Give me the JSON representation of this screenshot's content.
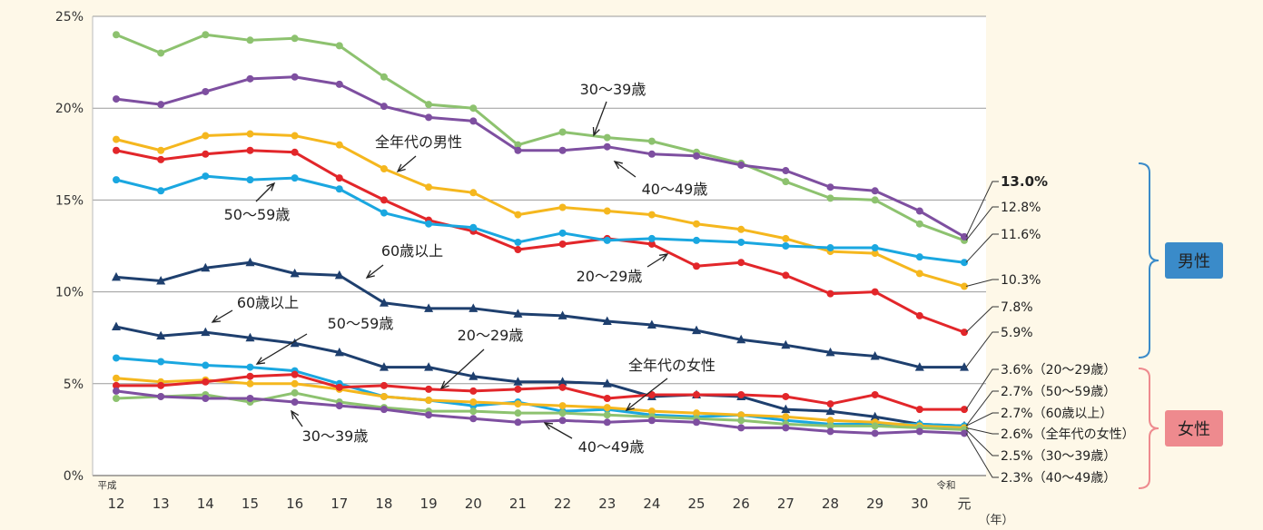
{
  "chart_data": {
    "type": "line",
    "ylim": [
      0,
      25
    ],
    "y_ticks": [
      "0%",
      "5%",
      "10%",
      "15%",
      "20%",
      "25%"
    ],
    "y_tick_values": [
      0,
      5,
      10,
      15,
      20,
      25
    ],
    "x_ticks": [
      "12",
      "13",
      "14",
      "15",
      "16",
      "17",
      "18",
      "19",
      "20",
      "21",
      "22",
      "23",
      "24",
      "25",
      "26",
      "27",
      "28",
      "29",
      "30",
      "元"
    ],
    "x_era_labels": [
      {
        "label": "平成",
        "index": 0
      },
      {
        "label": "令和",
        "index": 19
      }
    ],
    "x_unit": "（年）",
    "grid": "horizontal",
    "groups": {
      "male": "男性",
      "female": "女性"
    },
    "series": [
      {
        "key": "m_30",
        "group": "male",
        "color": "#8DC26F",
        "marker": "circle",
        "values": [
          24.0,
          23.0,
          24.0,
          23.7,
          23.8,
          23.4,
          21.7,
          20.2,
          20.0,
          18.0,
          18.7,
          18.4,
          18.2,
          17.6,
          17.0,
          16.0,
          15.1,
          15.0,
          13.7,
          12.8
        ]
      },
      {
        "key": "m_40",
        "group": "male",
        "color": "#7E4FA0",
        "marker": "circle",
        "values": [
          20.5,
          20.2,
          20.9,
          21.6,
          21.7,
          21.3,
          20.1,
          19.5,
          19.3,
          17.7,
          17.7,
          17.9,
          17.5,
          17.4,
          16.9,
          16.6,
          15.7,
          15.5,
          14.4,
          13.0
        ]
      },
      {
        "key": "m_all",
        "group": "male",
        "color": "#F5B71E",
        "marker": "circle",
        "values": [
          18.3,
          17.7,
          18.5,
          18.6,
          18.5,
          18.0,
          16.7,
          15.7,
          15.4,
          14.2,
          14.6,
          14.4,
          14.2,
          13.7,
          13.4,
          12.9,
          12.2,
          12.1,
          11.0,
          10.3
        ]
      },
      {
        "key": "m_20",
        "group": "male",
        "color": "#E2262A",
        "marker": "circle",
        "values": [
          17.7,
          17.2,
          17.5,
          17.7,
          17.6,
          16.2,
          15.0,
          13.9,
          13.3,
          12.3,
          12.6,
          12.9,
          12.6,
          11.4,
          11.6,
          10.9,
          9.9,
          10.0,
          8.7,
          7.8
        ]
      },
      {
        "key": "m_50",
        "group": "male",
        "color": "#1AA7E0",
        "marker": "circle",
        "values": [
          16.1,
          15.5,
          16.3,
          16.1,
          16.2,
          15.6,
          14.3,
          13.7,
          13.5,
          12.7,
          13.2,
          12.8,
          12.9,
          12.8,
          12.7,
          12.5,
          12.4,
          12.4,
          11.9,
          11.6
        ]
      },
      {
        "key": "m_60",
        "group": "male",
        "color": "#1E3F6E",
        "marker": "triangle",
        "values": [
          10.8,
          10.6,
          11.3,
          11.6,
          11.0,
          10.9,
          9.4,
          9.1,
          9.1,
          8.8,
          8.7,
          8.4,
          8.2,
          7.9,
          7.4,
          7.1,
          6.7,
          6.5,
          5.9,
          5.9
        ]
      },
      {
        "key": "f_60",
        "group": "female",
        "color": "#1E3F6E",
        "marker": "triangle",
        "values": [
          8.1,
          7.6,
          7.8,
          7.5,
          7.2,
          6.7,
          5.9,
          5.9,
          5.4,
          5.1,
          5.1,
          5.0,
          4.3,
          4.4,
          4.3,
          3.6,
          3.5,
          3.2,
          2.8,
          2.7
        ]
      },
      {
        "key": "f_50",
        "group": "female",
        "color": "#1AA7E0",
        "marker": "circle",
        "values": [
          6.4,
          6.2,
          6.0,
          5.9,
          5.7,
          5.0,
          4.3,
          4.1,
          3.8,
          4.0,
          3.5,
          3.6,
          3.3,
          3.2,
          3.3,
          3.0,
          2.8,
          2.8,
          2.8,
          2.7
        ]
      },
      {
        "key": "f_all",
        "group": "female",
        "color": "#F5B71E",
        "marker": "circle",
        "values": [
          5.3,
          5.1,
          5.2,
          5.0,
          5.0,
          4.7,
          4.3,
          4.1,
          4.0,
          3.9,
          3.8,
          3.7,
          3.5,
          3.4,
          3.3,
          3.2,
          3.0,
          2.9,
          2.7,
          2.6
        ]
      },
      {
        "key": "f_20",
        "group": "female",
        "color": "#E2262A",
        "marker": "circle",
        "values": [
          4.9,
          4.9,
          5.1,
          5.4,
          5.5,
          4.8,
          4.9,
          4.7,
          4.6,
          4.7,
          4.8,
          4.2,
          4.4,
          4.4,
          4.4,
          4.3,
          3.9,
          4.4,
          3.6,
          3.6
        ]
      },
      {
        "key": "f_30",
        "group": "female",
        "color": "#8DC26F",
        "marker": "circle",
        "values": [
          4.2,
          4.3,
          4.4,
          4.0,
          4.5,
          4.0,
          3.7,
          3.5,
          3.5,
          3.4,
          3.4,
          3.3,
          3.2,
          3.1,
          3.0,
          2.8,
          2.7,
          2.7,
          2.6,
          2.5
        ]
      },
      {
        "key": "f_40",
        "group": "female",
        "color": "#7E4FA0",
        "marker": "circle",
        "values": [
          4.6,
          4.3,
          4.2,
          4.2,
          4.0,
          3.8,
          3.6,
          3.3,
          3.1,
          2.9,
          3.0,
          2.9,
          3.0,
          2.9,
          2.6,
          2.6,
          2.4,
          2.3,
          2.4,
          2.3
        ]
      }
    ],
    "series_labels": [
      {
        "text": "30〜39歳",
        "series": "m_30"
      },
      {
        "text": "40〜49歳",
        "series": "m_40"
      },
      {
        "text": "全年代の男性",
        "series": "m_all"
      },
      {
        "text": "20〜29歳",
        "series": "m_20"
      },
      {
        "text": "50〜59歳",
        "series": "m_50"
      },
      {
        "text": "60歳以上",
        "series": "m_60"
      },
      {
        "text": "60歳以上",
        "series": "f_60"
      },
      {
        "text": "50〜59歳",
        "series": "f_50"
      },
      {
        "text": "20〜29歳",
        "series": "f_20"
      },
      {
        "text": "全年代の女性",
        "series": "f_all"
      },
      {
        "text": "30〜39歳",
        "series": "f_30"
      },
      {
        "text": "40〜49歳",
        "series": "f_40"
      }
    ],
    "end_labels_male": [
      {
        "text": "13.0%",
        "series": "m_40",
        "bold": true
      },
      {
        "text": "12.8%",
        "series": "m_30"
      },
      {
        "text": "11.6%",
        "series": "m_50"
      },
      {
        "text": "10.3%",
        "series": "m_all"
      },
      {
        "text": "7.8%",
        "series": "m_20"
      },
      {
        "text": "5.9%",
        "series": "m_60"
      }
    ],
    "end_labels_female": [
      {
        "text": "3.6%（20〜29歳）",
        "series": "f_20"
      },
      {
        "text": "2.7%（50〜59歳）",
        "series": "f_50"
      },
      {
        "text": "2.7%（60歳以上）",
        "series": "f_60"
      },
      {
        "text": "2.6%（全年代の女性）",
        "series": "f_all"
      },
      {
        "text": "2.5%（30〜39歳）",
        "series": "f_30"
      },
      {
        "text": "2.3%（40〜49歳）",
        "series": "f_40"
      }
    ],
    "group_colors": {
      "male": "#3A8BC9",
      "female": "#EE8A8E"
    }
  }
}
